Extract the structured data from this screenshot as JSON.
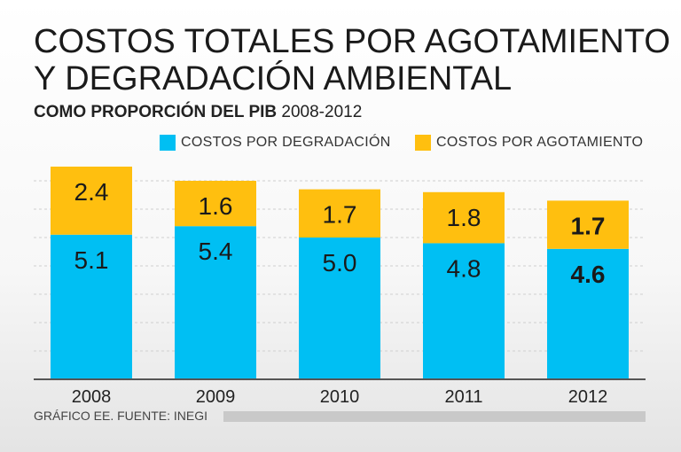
{
  "header": {
    "title_line1": "COSTOS TOTALES POR AGOTAMIENTO",
    "title_line2": "Y DEGRADACIÓN AMBIENTAL",
    "subtitle_bold": "COMO PROPORCIÓN DEL PIB",
    "subtitle_range": "2008-2012"
  },
  "footer": {
    "source": "GRÁFICO EE. FUENTE: INEGI"
  },
  "colors": {
    "degradacion": "#00bff3",
    "agotamiento": "#ffbf0f",
    "axis": "#555555",
    "grid": "#cfcfcf"
  },
  "chart_data": {
    "type": "bar",
    "stacked": true,
    "title": "COSTOS TOTALES POR AGOTAMIENTO Y DEGRADACIÓN AMBIENTAL",
    "subtitle": "COMO PROPORCIÓN DEL PIB 2008-2012",
    "categories": [
      "2008",
      "2009",
      "2010",
      "2011",
      "2012"
    ],
    "series": [
      {
        "name": "COSTOS POR DEGRADACIÓN",
        "values": [
          5.1,
          5.4,
          5.0,
          4.8,
          4.6
        ],
        "color": "#00bff3"
      },
      {
        "name": "COSTOS POR AGOTAMIENTO",
        "values": [
          2.4,
          1.6,
          1.7,
          1.8,
          1.7
        ],
        "color": "#ffbf0f"
      }
    ],
    "data_labels": {
      "degradacion": [
        "5.1",
        "5.4",
        "5.0",
        "4.8",
        "4.6"
      ],
      "agotamiento": [
        "2.4",
        "1.6",
        "1.7",
        "1.8",
        "1.7"
      ]
    },
    "highlight_category": "2012",
    "ylim": [
      0,
      7.5
    ],
    "grid": true,
    "legend": "top-right",
    "xlabel": "",
    "ylabel": ""
  }
}
